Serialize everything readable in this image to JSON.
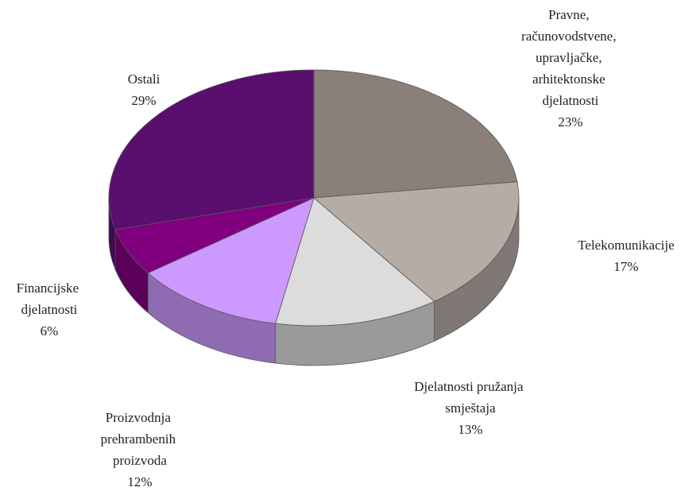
{
  "chart_data": {
    "type": "pie",
    "categories": [
      "Pravne, računovodstvene, upravljačke, arhitektonske djelatnosti",
      "Telekomunikacije",
      "Djelatnosti pružanja smještaja",
      "Proizvodnja prehrambenih proizvoda",
      "Financijske djelatnosti",
      "Ostali"
    ],
    "values": [
      23,
      17,
      13,
      12,
      6,
      29
    ],
    "value_labels": [
      "23%",
      "17%",
      "13%",
      "12%",
      "6%",
      "29%"
    ],
    "colors": [
      "#8b7f79",
      "#b5aca6",
      "#dcdcdc",
      "#cc99ff",
      "#800080",
      "#5a0e6e"
    ]
  }
}
